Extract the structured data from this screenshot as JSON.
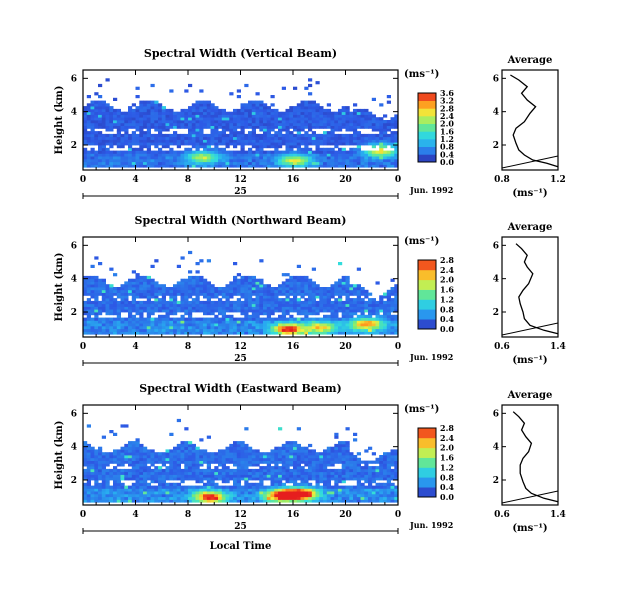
{
  "figure": {
    "common_xlabel": "Local Time",
    "time_ticks": [
      "0",
      "4",
      "8",
      "12",
      "16",
      "20",
      "0"
    ],
    "date_tick": "25",
    "date_label": "Jun. 1992",
    "unit_label": "(ms⁻¹)",
    "avg_title": "Average",
    "avg_xlabel": "(ms⁻¹)",
    "ylabel": "Height (km)",
    "yticks": [
      "2",
      "4",
      "6"
    ]
  },
  "chart_data": [
    {
      "type": "heatmap",
      "title": "Spectral Width (Vertical Beam)",
      "xlabel": "",
      "ylabel": "Height (km)",
      "xlim": [
        0,
        24
      ],
      "ylim": [
        0.5,
        6.5
      ],
      "colorbar": {
        "ticks": [
          "0.0",
          "0.4",
          "0.8",
          "1.2",
          "1.6",
          "2.0",
          "2.4",
          "2.8",
          "3.2",
          "3.6"
        ],
        "range": [
          0,
          3.6
        ]
      },
      "data_top_km": 4.3,
      "hot_spots": [
        {
          "t": 9,
          "h": 1.2,
          "v": 1.8
        },
        {
          "t": 16,
          "h": 1.0,
          "v": 2.0
        },
        {
          "t": 22.5,
          "h": 1.6,
          "v": 2.4
        }
      ],
      "average": {
        "xlim": [
          0.8,
          1.2
        ],
        "xtick_labels": [
          "0.8",
          "1.2"
        ],
        "profile": [
          [
            1.2,
            0.7
          ],
          [
            1.12,
            0.9
          ],
          [
            1.02,
            1.1
          ],
          [
            0.96,
            1.4
          ],
          [
            0.92,
            1.7
          ],
          [
            0.9,
            2.1
          ],
          [
            0.88,
            2.6
          ],
          [
            0.9,
            3.0
          ],
          [
            0.96,
            3.4
          ],
          [
            1.0,
            3.9
          ],
          [
            1.04,
            4.3
          ],
          [
            0.98,
            4.7
          ],
          [
            0.94,
            5.1
          ],
          [
            0.98,
            5.5
          ],
          [
            0.92,
            5.9
          ],
          [
            0.86,
            6.2
          ]
        ]
      }
    },
    {
      "type": "heatmap",
      "title": "Spectral Width (Northward Beam)",
      "xlabel": "",
      "ylabel": "Height (km)",
      "xlim": [
        0,
        24
      ],
      "ylim": [
        0.5,
        6.5
      ],
      "colorbar": {
        "ticks": [
          "0.0",
          "0.4",
          "0.8",
          "1.2",
          "1.6",
          "2.0",
          "2.4",
          "2.8"
        ],
        "range": [
          0,
          2.8
        ]
      },
      "data_top_km": 3.8,
      "hot_spots": [
        {
          "t": 15.5,
          "h": 0.9,
          "v": 2.4
        },
        {
          "t": 18,
          "h": 1.0,
          "v": 1.6
        },
        {
          "t": 21.5,
          "h": 1.2,
          "v": 2.0
        }
      ],
      "average": {
        "xlim": [
          0.6,
          1.4
        ],
        "xtick_labels": [
          "0.6",
          "1.4"
        ],
        "profile": [
          [
            1.4,
            0.7
          ],
          [
            1.2,
            0.9
          ],
          [
            1.0,
            1.2
          ],
          [
            0.92,
            1.6
          ],
          [
            0.9,
            2.0
          ],
          [
            0.86,
            2.5
          ],
          [
            0.84,
            2.9
          ],
          [
            0.9,
            3.3
          ],
          [
            0.98,
            3.7
          ],
          [
            1.04,
            4.3
          ],
          [
            0.96,
            4.7
          ],
          [
            0.92,
            5.0
          ],
          [
            0.96,
            5.4
          ],
          [
            0.88,
            5.8
          ],
          [
            0.8,
            6.1
          ]
        ]
      }
    },
    {
      "type": "heatmap",
      "title": "Spectral Width (Eastward Beam)",
      "xlabel": "Local Time",
      "ylabel": "Height (km)",
      "xlim": [
        0,
        24
      ],
      "ylim": [
        0.5,
        6.5
      ],
      "colorbar": {
        "ticks": [
          "0.0",
          "0.4",
          "0.8",
          "1.2",
          "1.6",
          "2.0",
          "2.4",
          "2.8"
        ],
        "range": [
          0,
          2.8
        ]
      },
      "data_top_km": 3.9,
      "hot_spots": [
        {
          "t": 9.5,
          "h": 0.9,
          "v": 2.4
        },
        {
          "t": 15,
          "h": 1.0,
          "v": 2.6
        },
        {
          "t": 16.5,
          "h": 1.1,
          "v": 2.8
        }
      ],
      "average": {
        "xlim": [
          0.6,
          1.4
        ],
        "xtick_labels": [
          "0.6",
          "1.4"
        ],
        "profile": [
          [
            1.4,
            0.7
          ],
          [
            1.2,
            0.9
          ],
          [
            1.02,
            1.2
          ],
          [
            0.94,
            1.5
          ],
          [
            0.9,
            1.9
          ],
          [
            0.86,
            2.4
          ],
          [
            0.86,
            2.9
          ],
          [
            0.9,
            3.3
          ],
          [
            0.98,
            3.7
          ],
          [
            1.02,
            4.2
          ],
          [
            0.94,
            4.6
          ],
          [
            0.88,
            5.0
          ],
          [
            0.92,
            5.4
          ],
          [
            0.84,
            5.8
          ],
          [
            0.76,
            6.1
          ]
        ]
      }
    }
  ]
}
